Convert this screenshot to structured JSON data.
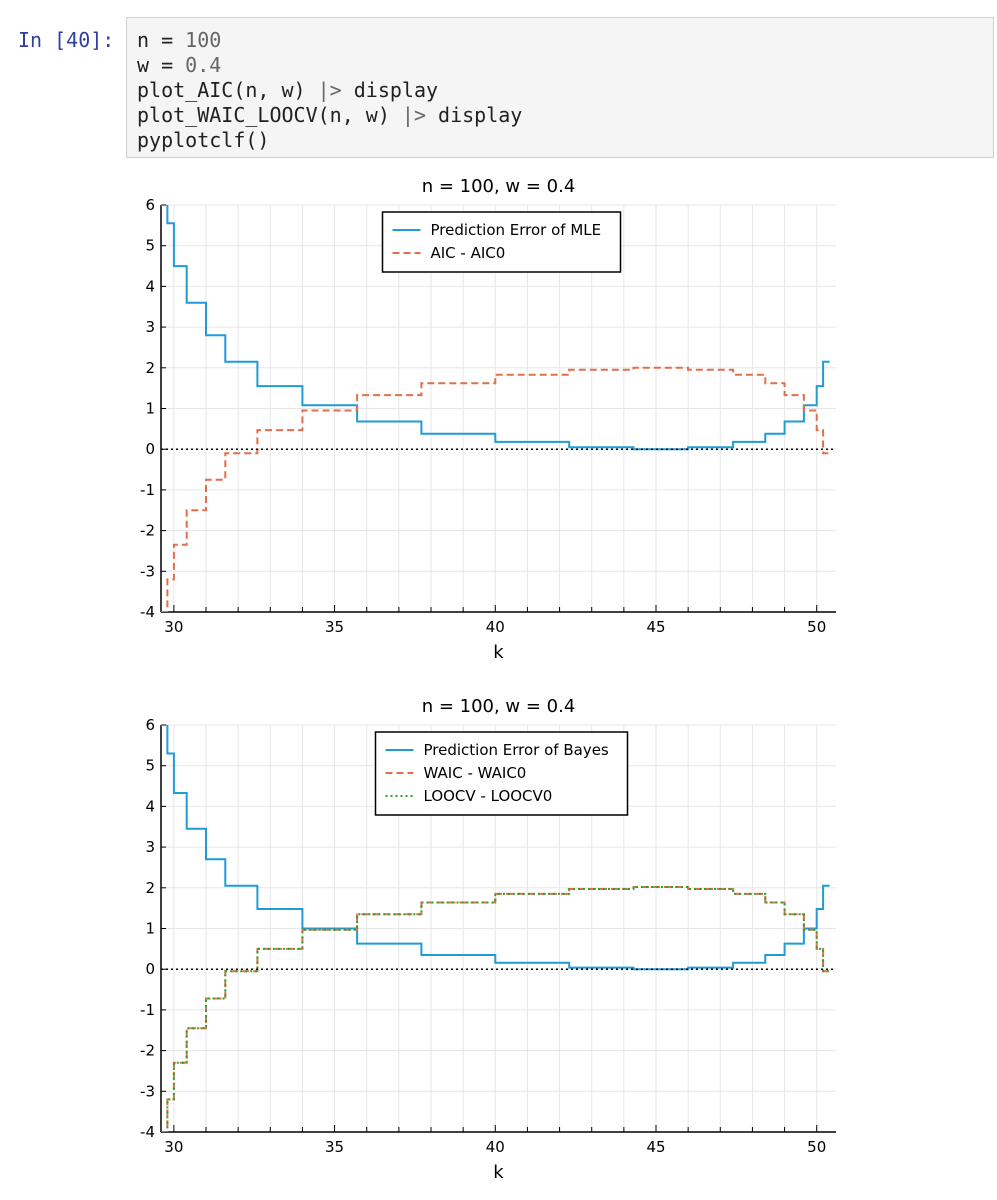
{
  "notebook": {
    "prompt": "In [40]:",
    "code_lines": [
      {
        "parts": [
          [
            "n = ",
            ""
          ],
          [
            "100",
            "num"
          ]
        ]
      },
      {
        "parts": [
          [
            "w = ",
            ""
          ],
          [
            "0.4",
            "num"
          ]
        ]
      },
      {
        "parts": [
          [
            "plot_AIC(n, w) ",
            ""
          ],
          [
            "|>",
            "op"
          ],
          [
            " display",
            ""
          ]
        ]
      },
      {
        "parts": [
          [
            "plot_WAIC_LOOCV(n, w) ",
            ""
          ],
          [
            "|>",
            "op"
          ],
          [
            " display",
            ""
          ]
        ]
      },
      {
        "parts": [
          [
            "pyplotclf()",
            ""
          ]
        ]
      }
    ]
  },
  "colors": {
    "blue": "#1f9bd7",
    "orange": "#e26e4b",
    "green": "#2ca02c",
    "zero": "#000000"
  },
  "chart_data": [
    {
      "type": "line",
      "title": "n = 100,  w = 0.4",
      "xlabel": "k",
      "ylabel": "",
      "xlim": [
        29.6,
        50.6
      ],
      "ylim": [
        -4,
        6
      ],
      "xticks": [
        30,
        35,
        40,
        45,
        50
      ],
      "yticks": [
        -4,
        -3,
        -2,
        -1,
        0,
        1,
        2,
        3,
        4,
        5,
        6
      ],
      "hline_y": 0,
      "grid": true,
      "legend": "top-center",
      "series": [
        {
          "name": "Prediction Error of MLE",
          "style": "solid",
          "color": "blue",
          "x": [
            29.6,
            29.8,
            29.8,
            30.0,
            30.0,
            30.4,
            30.4,
            31.0,
            31.0,
            31.6,
            31.6,
            32.6,
            32.6,
            34.0,
            34.0,
            35.7,
            35.7,
            37.7,
            37.7,
            40.0,
            40.0,
            42.3,
            42.3,
            44.3,
            44.3,
            46.0,
            46.0,
            47.4,
            47.4,
            48.4,
            48.4,
            49.0,
            49.0,
            49.6,
            49.6,
            50.0,
            50.0,
            50.2,
            50.2,
            50.4
          ],
          "y": [
            6.0,
            6.0,
            5.55,
            5.55,
            4.5,
            4.5,
            3.6,
            3.6,
            2.8,
            2.8,
            2.15,
            2.15,
            1.55,
            1.55,
            1.08,
            1.08,
            0.68,
            0.68,
            0.38,
            0.38,
            0.18,
            0.18,
            0.05,
            0.05,
            0.0,
            0.0,
            0.05,
            0.05,
            0.18,
            0.18,
            0.38,
            0.38,
            0.68,
            0.68,
            1.08,
            1.08,
            1.55,
            1.55,
            2.15,
            2.15
          ]
        },
        {
          "name": "AIC - AIC0",
          "style": "dashed",
          "color": "orange",
          "x": [
            29.6,
            29.8,
            29.8,
            30.0,
            30.0,
            30.4,
            30.4,
            31.0,
            31.0,
            31.6,
            31.6,
            32.6,
            32.6,
            34.0,
            34.0,
            35.7,
            35.7,
            37.7,
            37.7,
            40.0,
            40.0,
            42.3,
            42.3,
            44.3,
            44.3,
            46.0,
            46.0,
            47.4,
            47.4,
            48.4,
            48.4,
            49.0,
            49.0,
            49.6,
            49.6,
            50.0,
            50.0,
            50.2,
            50.2,
            50.4
          ],
          "y": [
            -4.0,
            -4.0,
            -3.2,
            -3.2,
            -2.35,
            -2.35,
            -1.5,
            -1.5,
            -0.75,
            -0.75,
            -0.1,
            -0.1,
            0.47,
            0.47,
            0.95,
            0.95,
            1.33,
            1.33,
            1.62,
            1.62,
            1.83,
            1.83,
            1.95,
            1.95,
            2.0,
            2.0,
            1.95,
            1.95,
            1.83,
            1.83,
            1.62,
            1.62,
            1.33,
            1.33,
            0.95,
            0.95,
            0.47,
            0.47,
            -0.1,
            -0.1
          ]
        }
      ]
    },
    {
      "type": "line",
      "title": "n = 100,  w = 0.4",
      "xlabel": "k",
      "ylabel": "",
      "xlim": [
        29.6,
        50.6
      ],
      "ylim": [
        -4,
        6
      ],
      "xticks": [
        30,
        35,
        40,
        45,
        50
      ],
      "yticks": [
        -4,
        -3,
        -2,
        -1,
        0,
        1,
        2,
        3,
        4,
        5,
        6
      ],
      "hline_y": 0,
      "grid": true,
      "legend": "top-center",
      "series": [
        {
          "name": "Prediction Error of Bayes",
          "style": "solid",
          "color": "blue",
          "x": [
            29.6,
            29.8,
            29.8,
            30.0,
            30.0,
            30.4,
            30.4,
            31.0,
            31.0,
            31.6,
            31.6,
            32.6,
            32.6,
            34.0,
            34.0,
            35.7,
            35.7,
            37.7,
            37.7,
            40.0,
            40.0,
            42.3,
            42.3,
            44.3,
            44.3,
            46.0,
            46.0,
            47.4,
            47.4,
            48.4,
            48.4,
            49.0,
            49.0,
            49.6,
            49.6,
            50.0,
            50.0,
            50.2,
            50.2,
            50.4
          ],
          "y": [
            6.0,
            6.0,
            5.3,
            5.3,
            4.33,
            4.33,
            3.45,
            3.45,
            2.7,
            2.7,
            2.05,
            2.05,
            1.48,
            1.48,
            1.0,
            1.0,
            0.63,
            0.63,
            0.35,
            0.35,
            0.16,
            0.16,
            0.04,
            0.04,
            0.0,
            0.0,
            0.04,
            0.04,
            0.16,
            0.16,
            0.35,
            0.35,
            0.63,
            0.63,
            1.0,
            1.0,
            1.48,
            1.48,
            2.05,
            2.05
          ]
        },
        {
          "name": "WAIC - WAIC0",
          "style": "dashed",
          "color": "orange",
          "x": [
            29.6,
            29.8,
            29.8,
            30.0,
            30.0,
            30.4,
            30.4,
            31.0,
            31.0,
            31.6,
            31.6,
            32.6,
            32.6,
            34.0,
            34.0,
            35.7,
            35.7,
            37.7,
            37.7,
            40.0,
            40.0,
            42.3,
            42.3,
            44.3,
            44.3,
            46.0,
            46.0,
            47.4,
            47.4,
            48.4,
            48.4,
            49.0,
            49.0,
            49.6,
            49.6,
            50.0,
            50.0,
            50.2,
            50.2,
            50.4
          ],
          "y": [
            -4.0,
            -4.0,
            -3.2,
            -3.2,
            -2.3,
            -2.3,
            -1.45,
            -1.45,
            -0.72,
            -0.72,
            -0.05,
            -0.05,
            0.5,
            0.5,
            0.97,
            0.97,
            1.35,
            1.35,
            1.64,
            1.64,
            1.85,
            1.85,
            1.97,
            1.97,
            2.02,
            2.02,
            1.97,
            1.97,
            1.85,
            1.85,
            1.64,
            1.64,
            1.35,
            1.35,
            0.97,
            0.97,
            0.5,
            0.5,
            -0.05,
            -0.05
          ]
        },
        {
          "name": "LOOCV - LOOCV0",
          "style": "dotted",
          "color": "green",
          "x": [
            29.6,
            29.8,
            29.8,
            30.0,
            30.0,
            30.4,
            30.4,
            31.0,
            31.0,
            31.6,
            31.6,
            32.6,
            32.6,
            34.0,
            34.0,
            35.7,
            35.7,
            37.7,
            37.7,
            40.0,
            40.0,
            42.3,
            42.3,
            44.3,
            44.3,
            46.0,
            46.0,
            47.4,
            47.4,
            48.4,
            48.4,
            49.0,
            49.0,
            49.6,
            49.6,
            50.0,
            50.0,
            50.2,
            50.2,
            50.4
          ],
          "y": [
            -4.0,
            -4.0,
            -3.2,
            -3.2,
            -2.3,
            -2.3,
            -1.45,
            -1.45,
            -0.72,
            -0.72,
            -0.05,
            -0.05,
            0.5,
            0.5,
            0.97,
            0.97,
            1.35,
            1.35,
            1.64,
            1.64,
            1.85,
            1.85,
            1.97,
            1.97,
            2.02,
            2.02,
            1.97,
            1.97,
            1.85,
            1.85,
            1.64,
            1.64,
            1.35,
            1.35,
            0.97,
            0.97,
            0.5,
            0.5,
            -0.05,
            -0.05
          ]
        }
      ]
    }
  ]
}
